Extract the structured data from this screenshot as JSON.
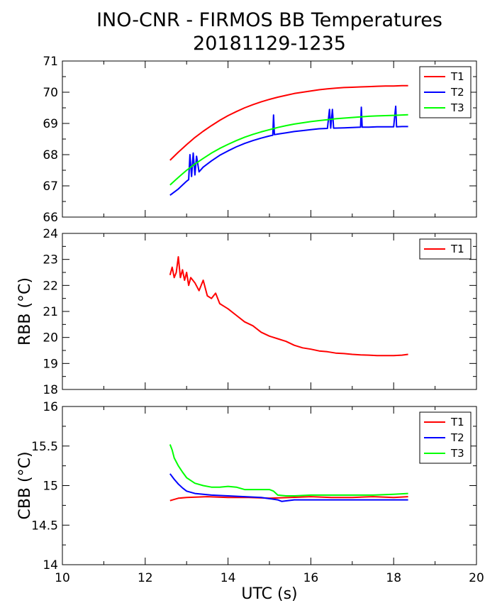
{
  "title": "INO-CNR - FIRMOS BB Temperatures",
  "subtitle": "20181129-1235",
  "chart_data": [
    {
      "type": "line",
      "title": "",
      "xlabel": "",
      "ylabel": "",
      "xlim": [
        10,
        20
      ],
      "ylim": [
        66,
        71
      ],
      "xticks": [
        10,
        12,
        14,
        16,
        18,
        20
      ],
      "yticks": [
        66,
        67,
        68,
        69,
        70,
        71
      ],
      "show_x_tick_labels": false,
      "legend": "top-right",
      "series": [
        {
          "name": "T1",
          "color": "#ff0000",
          "x": [
            12.6,
            12.8,
            13.0,
            13.2,
            13.4,
            13.6,
            13.8,
            14.0,
            14.2,
            14.4,
            14.6,
            14.8,
            15.0,
            15.2,
            15.4,
            15.6,
            15.8,
            16.0,
            16.2,
            16.4,
            16.6,
            16.8,
            17.0,
            17.2,
            17.4,
            17.6,
            17.8,
            18.0,
            18.2,
            18.35
          ],
          "y": [
            67.82,
            68.08,
            68.32,
            68.55,
            68.75,
            68.93,
            69.1,
            69.25,
            69.38,
            69.5,
            69.6,
            69.69,
            69.77,
            69.84,
            69.9,
            69.96,
            70.0,
            70.04,
            70.08,
            70.11,
            70.13,
            70.15,
            70.16,
            70.17,
            70.18,
            70.19,
            70.2,
            70.2,
            70.21,
            70.21
          ]
        },
        {
          "name": "T2",
          "color": "#0000ff",
          "x": [
            12.6,
            12.8,
            13.0,
            13.05,
            13.08,
            13.12,
            13.16,
            13.2,
            13.24,
            13.3,
            13.4,
            13.6,
            13.8,
            14.0,
            14.2,
            14.4,
            14.6,
            14.8,
            15.0,
            15.08,
            15.1,
            15.12,
            15.2,
            15.4,
            15.6,
            15.8,
            16.0,
            16.2,
            16.4,
            16.45,
            16.48,
            16.52,
            16.55,
            16.8,
            17.0,
            17.2,
            17.22,
            17.24,
            17.4,
            17.6,
            17.8,
            18.0,
            18.05,
            18.07,
            18.2,
            18.35
          ],
          "y": [
            66.7,
            66.9,
            67.15,
            67.2,
            68.0,
            67.3,
            68.05,
            67.35,
            67.95,
            67.45,
            67.6,
            67.8,
            67.98,
            68.12,
            68.25,
            68.36,
            68.45,
            68.53,
            68.6,
            68.62,
            69.27,
            68.64,
            68.66,
            68.7,
            68.74,
            68.77,
            68.8,
            68.83,
            68.84,
            69.45,
            68.85,
            69.45,
            68.85,
            68.86,
            68.87,
            68.88,
            69.52,
            68.88,
            68.88,
            68.89,
            68.89,
            68.89,
            69.55,
            68.89,
            68.9,
            68.9
          ]
        },
        {
          "name": "T3",
          "color": "#00ff00",
          "x": [
            12.6,
            12.8,
            13.0,
            13.2,
            13.4,
            13.6,
            13.8,
            14.0,
            14.2,
            14.4,
            14.6,
            14.8,
            15.0,
            15.2,
            15.4,
            15.6,
            15.8,
            16.0,
            16.2,
            16.4,
            16.6,
            16.8,
            17.0,
            17.2,
            17.4,
            17.6,
            17.8,
            18.0,
            18.2,
            18.35
          ],
          "y": [
            67.03,
            67.27,
            67.5,
            67.7,
            67.88,
            68.05,
            68.2,
            68.33,
            68.45,
            68.56,
            68.65,
            68.73,
            68.8,
            68.87,
            68.93,
            68.98,
            69.02,
            69.06,
            69.09,
            69.12,
            69.15,
            69.17,
            69.19,
            69.21,
            69.23,
            69.24,
            69.25,
            69.26,
            69.27,
            69.28
          ]
        }
      ]
    },
    {
      "type": "line",
      "title": "",
      "xlabel": "",
      "ylabel": "RBB (°C)",
      "xlim": [
        10,
        20
      ],
      "ylim": [
        18,
        24
      ],
      "xticks": [
        10,
        12,
        14,
        16,
        18,
        20
      ],
      "yticks": [
        18,
        19,
        20,
        21,
        22,
        23,
        24
      ],
      "show_x_tick_labels": false,
      "legend": "top-right",
      "series": [
        {
          "name": "T1",
          "color": "#ff0000",
          "x": [
            12.6,
            12.65,
            12.7,
            12.75,
            12.8,
            12.85,
            12.9,
            12.95,
            13.0,
            13.05,
            13.1,
            13.2,
            13.3,
            13.4,
            13.5,
            13.6,
            13.7,
            13.8,
            13.9,
            14.0,
            14.2,
            14.4,
            14.6,
            14.8,
            15.0,
            15.2,
            15.4,
            15.6,
            15.8,
            16.0,
            16.2,
            16.4,
            16.6,
            16.8,
            17.0,
            17.2,
            17.4,
            17.6,
            17.8,
            18.0,
            18.2,
            18.35
          ],
          "y": [
            22.4,
            22.7,
            22.3,
            22.5,
            23.1,
            22.3,
            22.6,
            22.2,
            22.5,
            22.0,
            22.3,
            22.1,
            21.8,
            22.2,
            21.6,
            21.5,
            21.7,
            21.3,
            21.2,
            21.1,
            20.85,
            20.6,
            20.45,
            20.2,
            20.05,
            19.95,
            19.85,
            19.7,
            19.6,
            19.55,
            19.48,
            19.45,
            19.4,
            19.38,
            19.35,
            19.33,
            19.32,
            19.3,
            19.3,
            19.3,
            19.32,
            19.35
          ]
        }
      ]
    },
    {
      "type": "line",
      "title": "",
      "xlabel": "UTC (s)",
      "ylabel": "CBB (°C)",
      "xlim": [
        10,
        20
      ],
      "ylim": [
        14,
        16
      ],
      "xticks": [
        10,
        12,
        14,
        16,
        18,
        20
      ],
      "yticks": [
        14,
        14.5,
        15,
        15.5,
        16
      ],
      "show_x_tick_labels": true,
      "legend": "top-right",
      "series": [
        {
          "name": "T1",
          "color": "#ff0000",
          "x": [
            12.6,
            12.8,
            13.0,
            13.5,
            14.0,
            14.5,
            15.0,
            15.5,
            16.0,
            16.5,
            17.0,
            17.5,
            18.0,
            18.35
          ],
          "y": [
            14.81,
            14.84,
            14.85,
            14.86,
            14.85,
            14.85,
            14.84,
            14.85,
            14.86,
            14.85,
            14.85,
            14.86,
            14.85,
            14.86
          ]
        },
        {
          "name": "T2",
          "color": "#0000ff",
          "x": [
            12.6,
            12.7,
            12.8,
            12.9,
            13.0,
            13.2,
            13.4,
            13.6,
            14.0,
            14.4,
            14.8,
            15.2,
            15.3,
            15.6,
            16.0,
            16.5,
            17.0,
            17.5,
            18.0,
            18.35
          ],
          "y": [
            15.15,
            15.08,
            15.02,
            14.97,
            14.93,
            14.9,
            14.89,
            14.88,
            14.87,
            14.86,
            14.85,
            14.82,
            14.8,
            14.82,
            14.82,
            14.82,
            14.82,
            14.82,
            14.82,
            14.82
          ]
        },
        {
          "name": "T3",
          "color": "#00ff00",
          "x": [
            12.6,
            12.65,
            12.7,
            12.8,
            12.9,
            13.0,
            13.2,
            13.4,
            13.6,
            13.8,
            14.0,
            14.2,
            14.4,
            14.6,
            14.8,
            15.0,
            15.1,
            15.2,
            15.4,
            15.6,
            16.0,
            16.5,
            17.0,
            17.5,
            18.0,
            18.35
          ],
          "y": [
            15.52,
            15.45,
            15.35,
            15.25,
            15.17,
            15.1,
            15.03,
            15.0,
            14.98,
            14.98,
            14.99,
            14.98,
            14.95,
            14.95,
            14.95,
            14.95,
            14.93,
            14.88,
            14.87,
            14.87,
            14.88,
            14.88,
            14.88,
            14.88,
            14.89,
            14.9
          ]
        }
      ]
    }
  ]
}
